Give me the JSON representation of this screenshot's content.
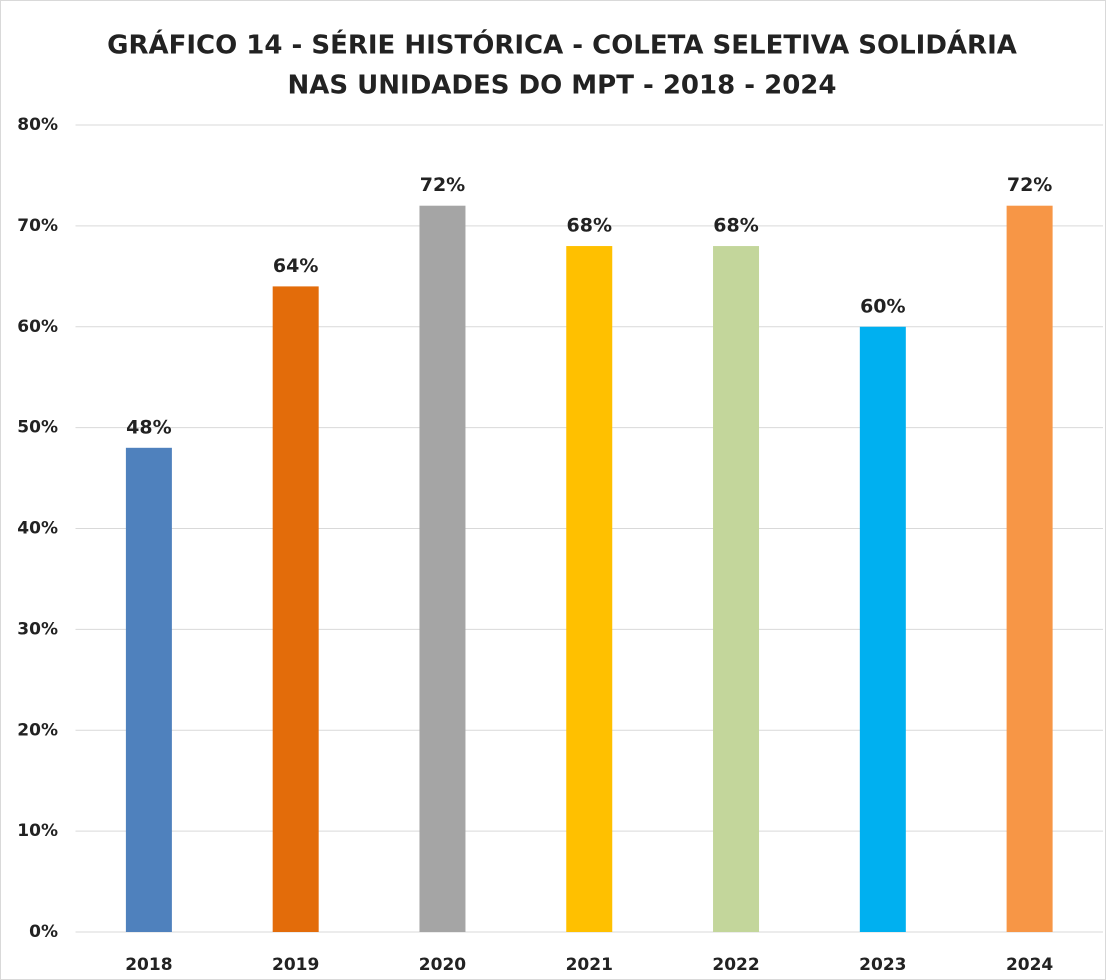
{
  "chart_data": {
    "type": "bar",
    "title": [
      "GRÁFICO 14 - SÉRIE HISTÓRICA - COLETA SELETIVA SOLIDÁRIA",
      "NAS UNIDADES DO MPT - 2018 - 2024"
    ],
    "categories": [
      "2018",
      "2019",
      "2020",
      "2021",
      "2022",
      "2023",
      "2024"
    ],
    "values": [
      48,
      64,
      72,
      68,
      68,
      60,
      72
    ],
    "value_labels": [
      "48%",
      "64%",
      "72%",
      "68%",
      "68%",
      "60%",
      "72%"
    ],
    "colors": [
      "#4f81bd",
      "#e36c0a",
      "#a5a5a5",
      "#ffc000",
      "#c3d69b",
      "#00b0f0",
      "#f79646"
    ],
    "ylim": [
      0,
      80
    ],
    "yticks": [
      {
        "value": 0,
        "label": "0%"
      },
      {
        "value": 10,
        "label": "10%"
      },
      {
        "value": 20,
        "label": "20%"
      },
      {
        "value": 30,
        "label": "30%"
      },
      {
        "value": 40,
        "label": "40%"
      },
      {
        "value": 50,
        "label": "50%"
      },
      {
        "value": 60,
        "label": "60%"
      },
      {
        "value": 70,
        "label": "70%"
      },
      {
        "value": 80,
        "label": "80%"
      }
    ],
    "grid": true
  }
}
